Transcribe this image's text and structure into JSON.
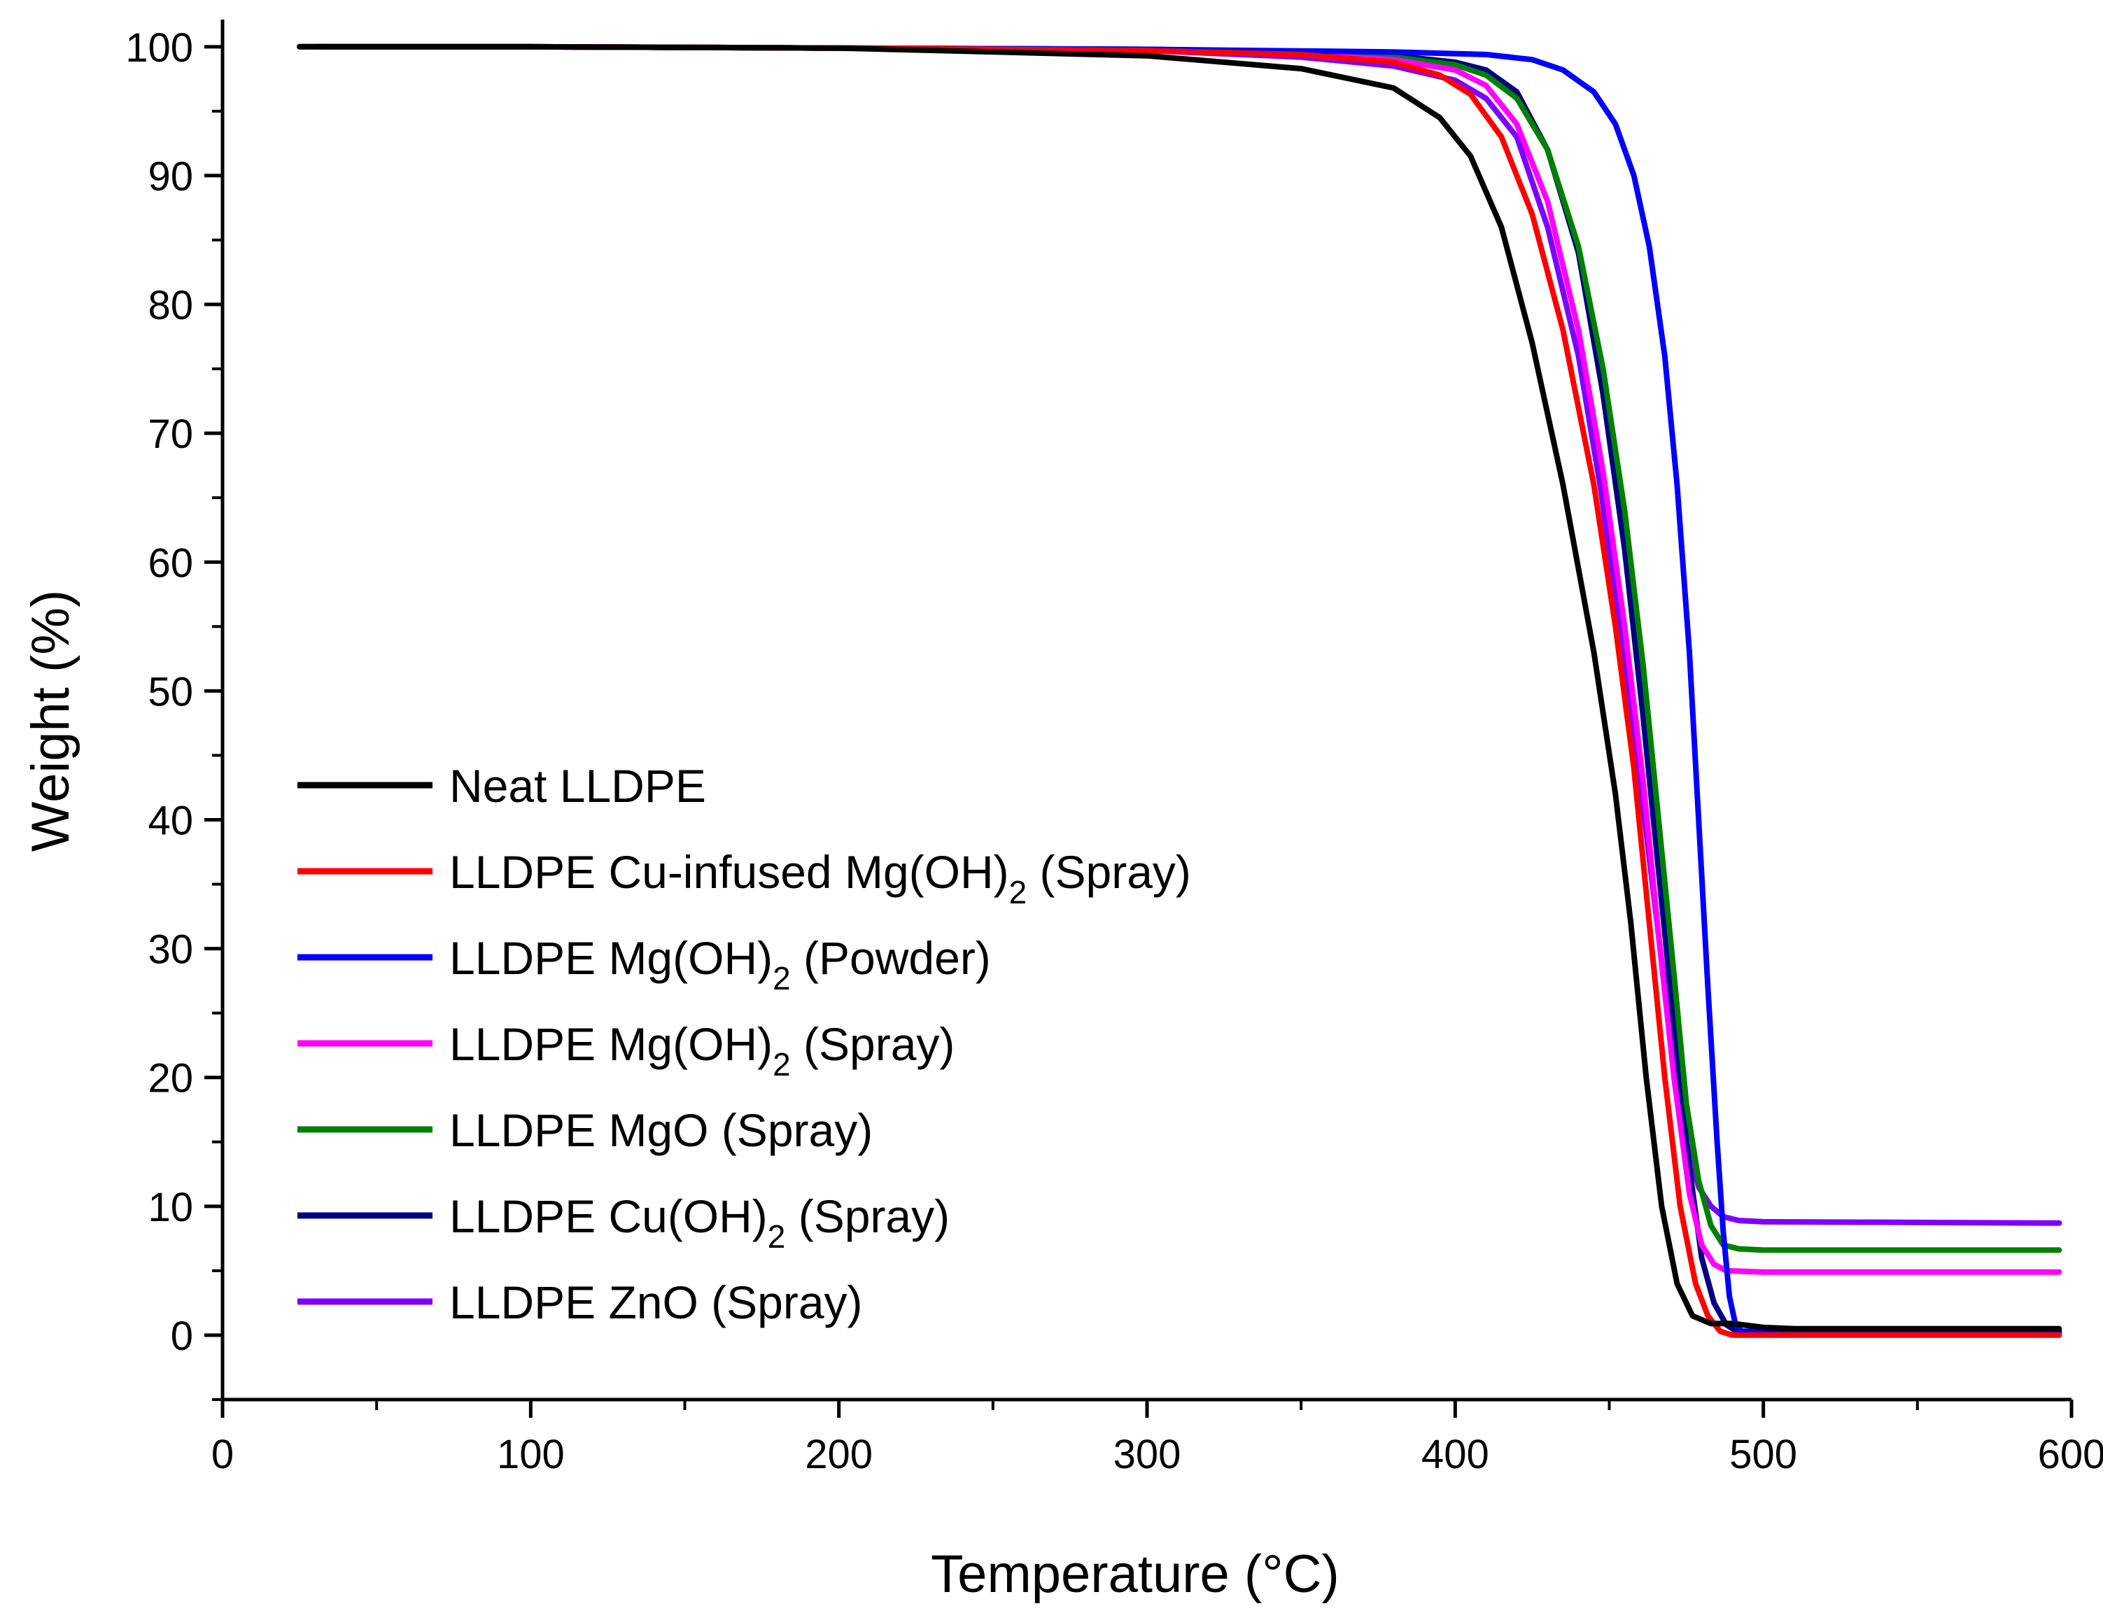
{
  "chart_data": {
    "type": "line",
    "xlabel": "Temperature (°C)",
    "ylabel": "Weight (%)",
    "xlim": [
      0,
      600
    ],
    "ylim": [
      -5,
      102
    ],
    "xticks": [
      0,
      100,
      200,
      300,
      400,
      500,
      600
    ],
    "yticks": [
      0,
      10,
      20,
      30,
      40,
      50,
      60,
      70,
      80,
      90,
      100
    ],
    "xtick_labels": [
      "0",
      "100",
      "200",
      "300",
      "400",
      "500",
      "600"
    ],
    "ytick_labels": [
      "0",
      "10",
      "20",
      "30",
      "40",
      "50",
      "60",
      "70",
      "80",
      "90",
      "100"
    ],
    "grid": false,
    "legend_position": "bottom-left",
    "series": [
      {
        "name": "Neat LLDPE",
        "legend_parts": [
          [
            "Neat LLDPE",
            "n"
          ]
        ],
        "color": "#000000",
        "points": [
          [
            25,
            100
          ],
          [
            100,
            100
          ],
          [
            200,
            99.9
          ],
          [
            300,
            99.3
          ],
          [
            350,
            98.3
          ],
          [
            380,
            96.8
          ],
          [
            395,
            94.5
          ],
          [
            405,
            91.5
          ],
          [
            415,
            86
          ],
          [
            425,
            77
          ],
          [
            435,
            66
          ],
          [
            445,
            53
          ],
          [
            452,
            42
          ],
          [
            457,
            32
          ],
          [
            462,
            20
          ],
          [
            467,
            10
          ],
          [
            472,
            4
          ],
          [
            477,
            1.5
          ],
          [
            483,
            0.9
          ],
          [
            490,
            0.9
          ],
          [
            500,
            0.6
          ],
          [
            510,
            0.5
          ],
          [
            596,
            0.5
          ]
        ]
      },
      {
        "name": "LLDPE Cu-infused Mg(OH)2 (Spray)",
        "legend_parts": [
          [
            "LLDPE Cu-infused Mg(OH)",
            "n"
          ],
          [
            "2",
            "sub"
          ],
          [
            " (Spray)",
            "n"
          ]
        ],
        "color": "#ff0000",
        "points": [
          [
            35,
            100
          ],
          [
            100,
            100
          ],
          [
            200,
            99.9
          ],
          [
            300,
            99.7
          ],
          [
            350,
            99.4
          ],
          [
            380,
            98.8
          ],
          [
            395,
            97.8
          ],
          [
            405,
            96.3
          ],
          [
            415,
            93
          ],
          [
            425,
            87
          ],
          [
            435,
            78
          ],
          [
            445,
            66
          ],
          [
            452,
            55
          ],
          [
            458,
            44
          ],
          [
            463,
            32
          ],
          [
            468,
            20
          ],
          [
            473,
            10
          ],
          [
            478,
            4
          ],
          [
            482,
            1.5
          ],
          [
            486,
            0.3
          ],
          [
            490,
            0
          ],
          [
            596,
            0
          ]
        ]
      },
      {
        "name": "LLDPE Mg(OH)2 (Powder)",
        "legend_parts": [
          [
            "LLDPE Mg(OH)",
            "n"
          ],
          [
            "2",
            "sub"
          ],
          [
            " (Powder)",
            "n"
          ]
        ],
        "color": "#0000ff",
        "points": [
          [
            25,
            100
          ],
          [
            100,
            100
          ],
          [
            200,
            99.9
          ],
          [
            300,
            99.8
          ],
          [
            380,
            99.6
          ],
          [
            410,
            99.4
          ],
          [
            425,
            99
          ],
          [
            435,
            98.2
          ],
          [
            445,
            96.5
          ],
          [
            452,
            94
          ],
          [
            458,
            90
          ],
          [
            463,
            84.5
          ],
          [
            468,
            76
          ],
          [
            472,
            66
          ],
          [
            476,
            53
          ],
          [
            479,
            40
          ],
          [
            482,
            27
          ],
          [
            485,
            15
          ],
          [
            487,
            8
          ],
          [
            489,
            3
          ],
          [
            491,
            0.8
          ],
          [
            493,
            0.3
          ],
          [
            596,
            0.3
          ]
        ]
      },
      {
        "name": "LLDPE Mg(OH)2 (Spray)",
        "legend_parts": [
          [
            "LLDPE Mg(OH)",
            "n"
          ],
          [
            "2",
            "sub"
          ],
          [
            " (Spray)",
            "n"
          ]
        ],
        "color": "#ff00ff",
        "points": [
          [
            33,
            100
          ],
          [
            100,
            100
          ],
          [
            200,
            99.9
          ],
          [
            300,
            99.7
          ],
          [
            350,
            99.4
          ],
          [
            380,
            99
          ],
          [
            400,
            98.2
          ],
          [
            410,
            97
          ],
          [
            420,
            94
          ],
          [
            430,
            88
          ],
          [
            440,
            78
          ],
          [
            448,
            67
          ],
          [
            455,
            55
          ],
          [
            461,
            43
          ],
          [
            466,
            31
          ],
          [
            471,
            20
          ],
          [
            476,
            11
          ],
          [
            480,
            7
          ],
          [
            484,
            5.5
          ],
          [
            488,
            5
          ],
          [
            500,
            4.9
          ],
          [
            596,
            4.9
          ]
        ]
      },
      {
        "name": "LLDPE MgO (Spray)",
        "legend_parts": [
          [
            "LLDPE MgO (Spray)",
            "n"
          ]
        ],
        "color": "#008000",
        "points": [
          [
            35,
            100
          ],
          [
            100,
            100
          ],
          [
            200,
            99.9
          ],
          [
            300,
            99.8
          ],
          [
            350,
            99.6
          ],
          [
            380,
            99.2
          ],
          [
            400,
            98.6
          ],
          [
            410,
            97.8
          ],
          [
            420,
            96
          ],
          [
            430,
            92
          ],
          [
            440,
            84.5
          ],
          [
            448,
            75
          ],
          [
            455,
            64
          ],
          [
            461,
            52
          ],
          [
            466,
            40
          ],
          [
            471,
            28
          ],
          [
            475,
            18
          ],
          [
            479,
            12
          ],
          [
            483,
            8.5
          ],
          [
            487,
            7
          ],
          [
            492,
            6.7
          ],
          [
            500,
            6.6
          ],
          [
            596,
            6.6
          ]
        ]
      },
      {
        "name": "LLDPE Cu(OH)2 (Spray)",
        "legend_parts": [
          [
            "LLDPE Cu(OH)",
            "n"
          ],
          [
            "2",
            "sub"
          ],
          [
            " (Spray)",
            "n"
          ]
        ],
        "color": "#000080",
        "points": [
          [
            30,
            100
          ],
          [
            100,
            100
          ],
          [
            200,
            99.9
          ],
          [
            300,
            99.8
          ],
          [
            350,
            99.6
          ],
          [
            380,
            99.3
          ],
          [
            400,
            98.8
          ],
          [
            410,
            98.2
          ],
          [
            420,
            96.5
          ],
          [
            430,
            92
          ],
          [
            440,
            84
          ],
          [
            448,
            73
          ],
          [
            455,
            61
          ],
          [
            461,
            48
          ],
          [
            466,
            36
          ],
          [
            471,
            24
          ],
          [
            476,
            13
          ],
          [
            480,
            6
          ],
          [
            484,
            2.5
          ],
          [
            488,
            0.8
          ],
          [
            492,
            0.2
          ],
          [
            596,
            0.2
          ]
        ]
      },
      {
        "name": "LLDPE ZnO (Spray)",
        "legend_parts": [
          [
            "LLDPE ZnO (Spray)",
            "n"
          ]
        ],
        "color": "#8000ff",
        "points": [
          [
            32,
            100
          ],
          [
            100,
            100
          ],
          [
            200,
            99.9
          ],
          [
            300,
            99.7
          ],
          [
            350,
            99.2
          ],
          [
            380,
            98.5
          ],
          [
            400,
            97.4
          ],
          [
            410,
            96
          ],
          [
            420,
            93
          ],
          [
            430,
            86
          ],
          [
            440,
            76
          ],
          [
            447,
            66
          ],
          [
            454,
            54
          ],
          [
            460,
            43
          ],
          [
            465,
            33
          ],
          [
            470,
            23
          ],
          [
            475,
            15
          ],
          [
            479,
            11.5
          ],
          [
            483,
            10
          ],
          [
            487,
            9.2
          ],
          [
            492,
            8.9
          ],
          [
            500,
            8.8
          ],
          [
            596,
            8.7
          ]
        ]
      }
    ]
  }
}
